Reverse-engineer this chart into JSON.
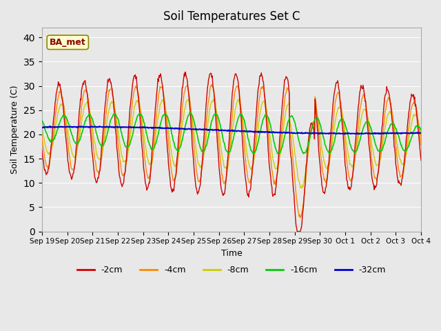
{
  "title": "Soil Temperatures Set C",
  "xlabel": "Time",
  "ylabel": "Soil Temperature (C)",
  "ylim": [
    0,
    42
  ],
  "yticks": [
    0,
    5,
    10,
    15,
    20,
    25,
    30,
    35,
    40
  ],
  "bg_color": "#e8e8e8",
  "label_annotation": "BA_met",
  "colors": {
    "-2cm": "#cc0000",
    "-4cm": "#ff8800",
    "-8cm": "#cccc00",
    "-16cm": "#00cc00",
    "-32cm": "#0000cc"
  },
  "x_labels": [
    "Sep 19",
    "Sep 20",
    "Sep 21",
    "Sep 22",
    "Sep 23",
    "Sep 24",
    "Sep 25",
    "Sep 26",
    "Sep 27",
    "Sep 28",
    "Sep 29",
    "Sep 30",
    "Oct 1",
    "Oct 2",
    "Oct 3",
    "Oct 4"
  ],
  "n_days": 15,
  "points_per_day": 48
}
